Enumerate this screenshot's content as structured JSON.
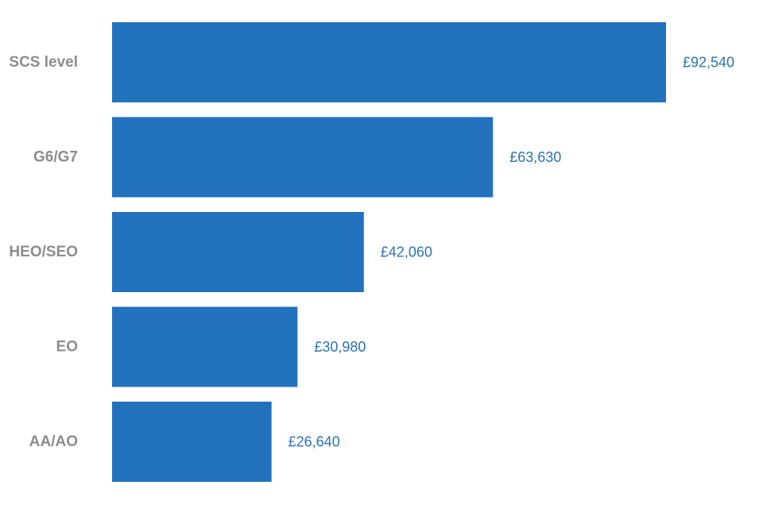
{
  "chart_data": {
    "type": "bar",
    "orientation": "horizontal",
    "title": "",
    "xlabel": "",
    "ylabel": "",
    "categories": [
      "SCS level",
      "G6/G7",
      "HEO/SEO",
      "EO",
      "AA/AO"
    ],
    "values": [
      92540,
      63630,
      42060,
      30980,
      26640
    ],
    "value_labels": [
      "£92,540",
      "£63,630",
      "£42,060",
      "£30,980",
      "£26,640"
    ],
    "xlim": [
      0,
      92540
    ],
    "grid": false,
    "legend": "none",
    "colors": {
      "bar": "#2272bd",
      "value_text": "#2a72b8",
      "category_text": "#8c8c8c"
    }
  }
}
